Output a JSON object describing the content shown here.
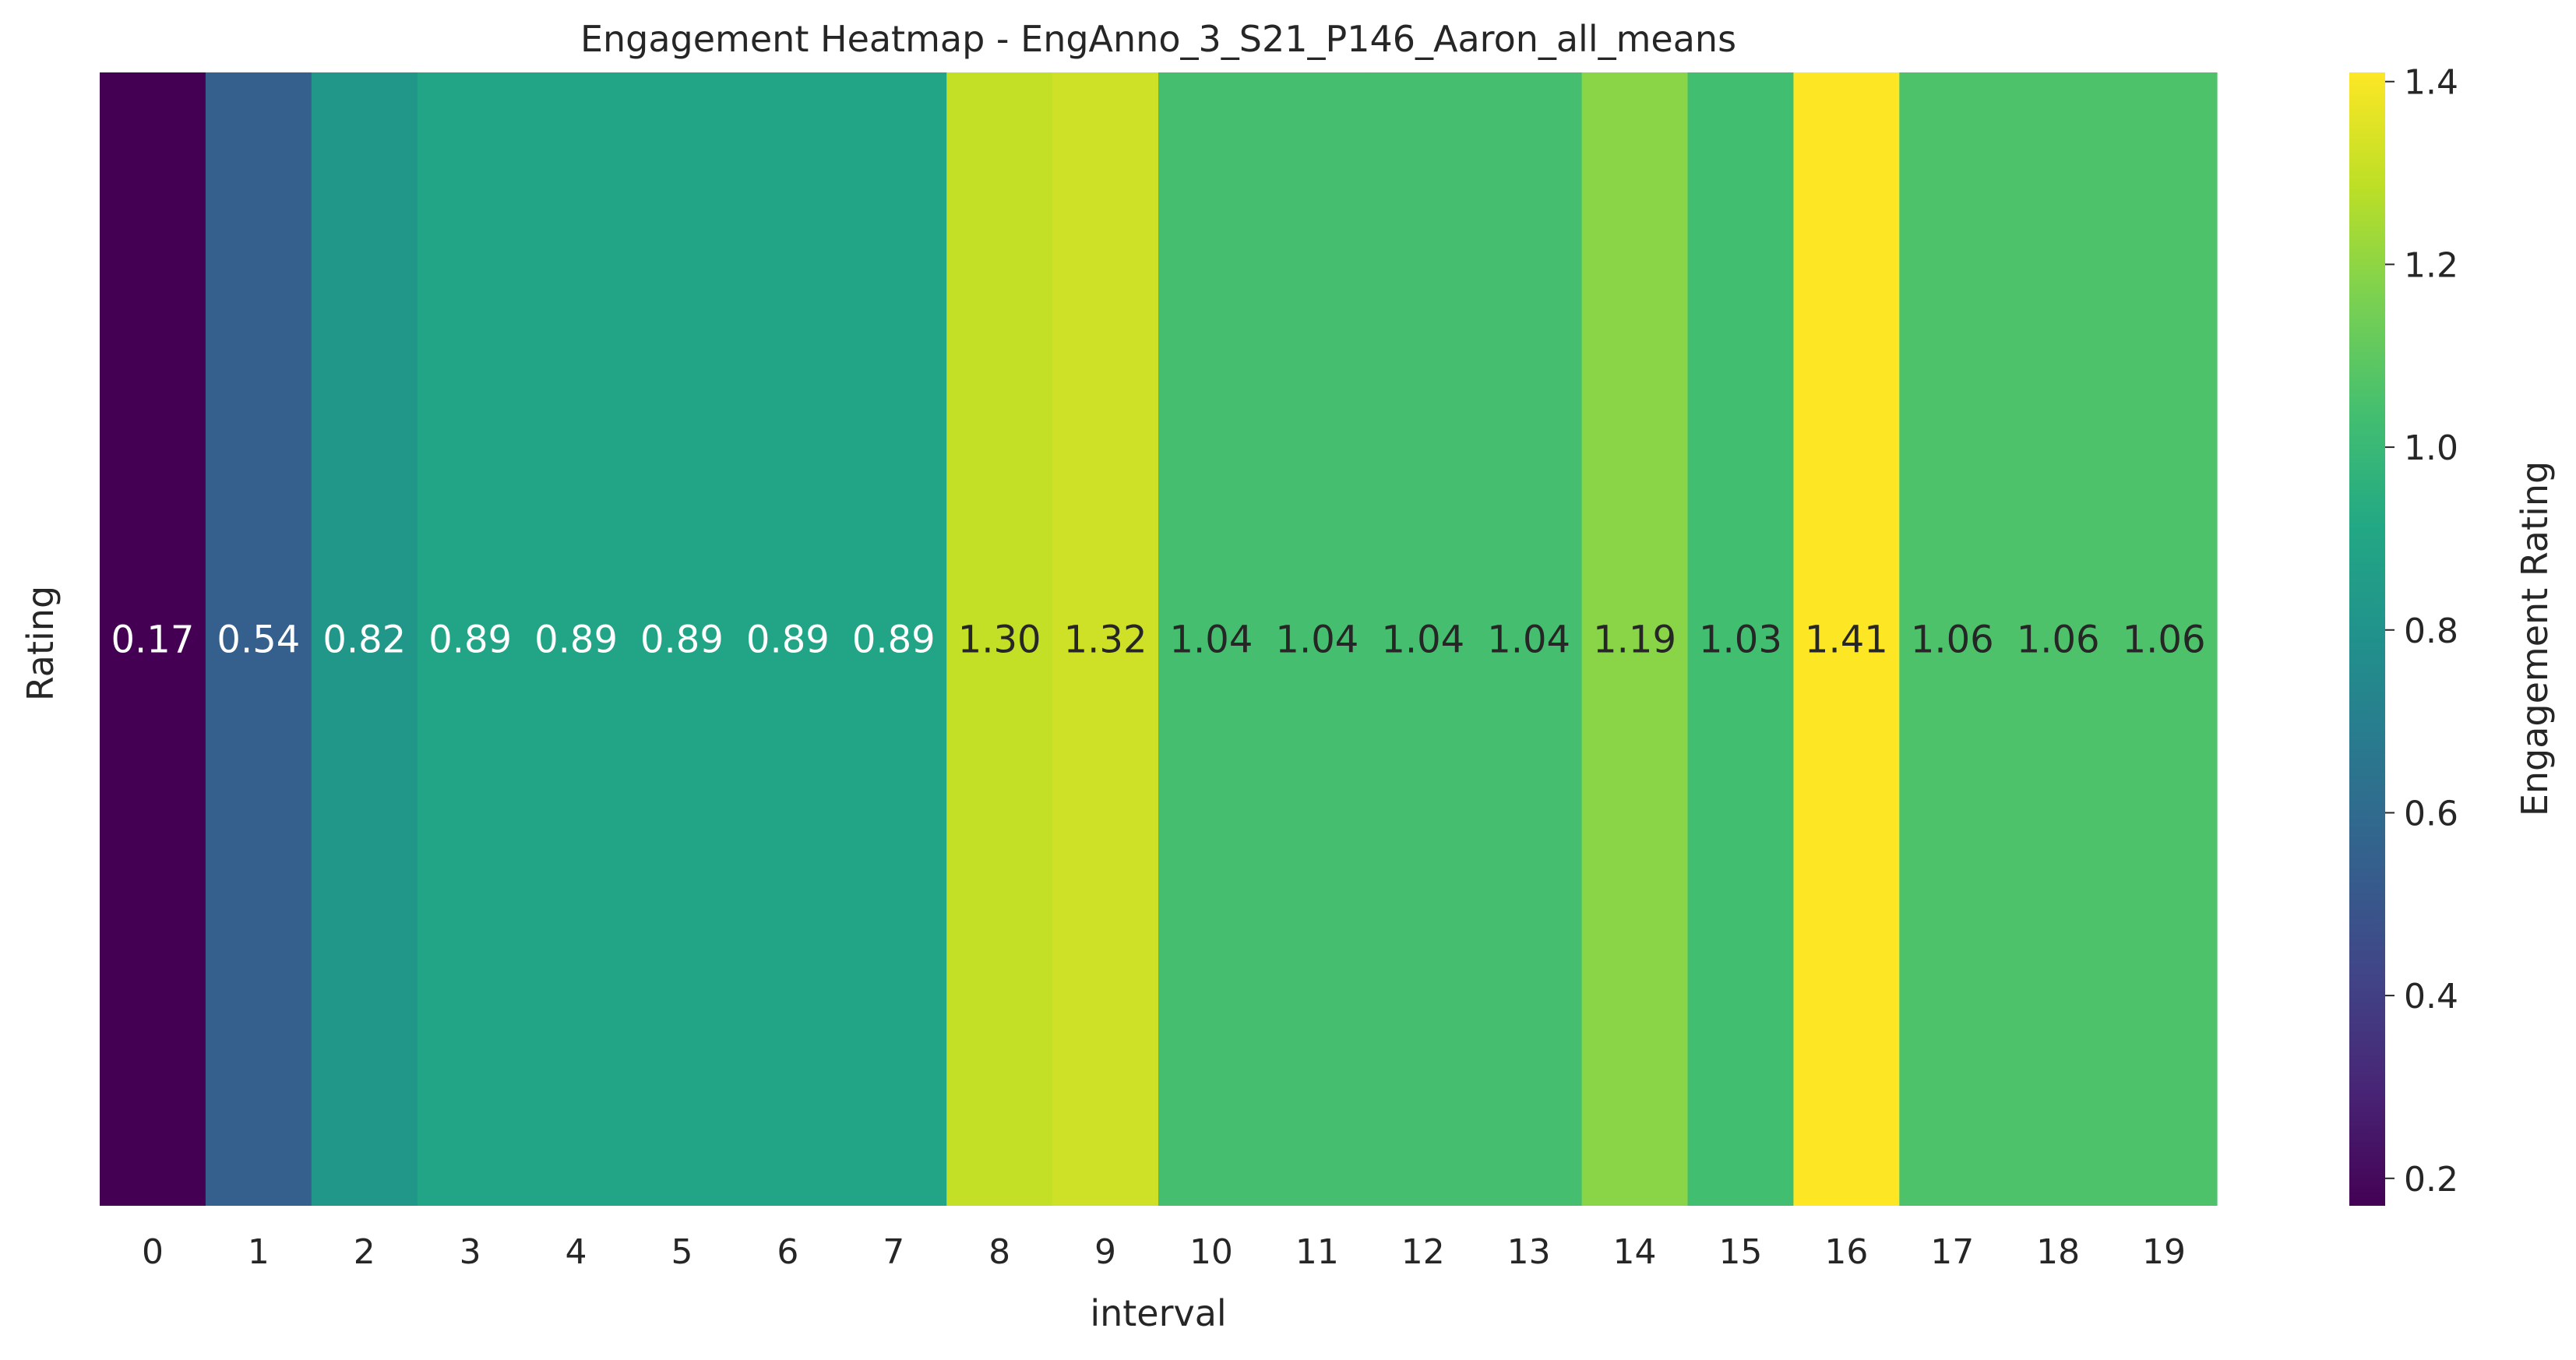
{
  "chart_data": {
    "type": "heatmap",
    "title": "Engagement Heatmap -  EngAnno_3_S21_P146_Aaron_all_means",
    "xlabel": "interval",
    "ylabel": "Rating",
    "colorbar_label": "Engagement Rating",
    "colormap": "viridis",
    "x": [
      0,
      1,
      2,
      3,
      4,
      5,
      6,
      7,
      8,
      9,
      10,
      11,
      12,
      13,
      14,
      15,
      16,
      17,
      18,
      19
    ],
    "values": [
      0.17,
      0.54,
      0.82,
      0.89,
      0.89,
      0.89,
      0.89,
      0.89,
      1.3,
      1.32,
      1.04,
      1.04,
      1.04,
      1.04,
      1.19,
      1.03,
      1.41,
      1.06,
      1.06,
      1.06
    ],
    "value_labels": [
      "0.17",
      "0.54",
      "0.82",
      "0.89",
      "0.89",
      "0.89",
      "0.89",
      "0.89",
      "1.30",
      "1.32",
      "1.04",
      "1.04",
      "1.04",
      "1.04",
      "1.19",
      "1.03",
      "1.41",
      "1.06",
      "1.06",
      "1.06"
    ],
    "vmin": 0.17,
    "vmax": 1.41,
    "colorbar_ticks": [
      0.2,
      0.4,
      0.6,
      0.8,
      1.0,
      1.2,
      1.4
    ],
    "colorbar_tick_labels": [
      "0.2",
      "0.4",
      "0.6",
      "0.8",
      "1.0",
      "1.2",
      "1.4"
    ],
    "grid": false
  }
}
